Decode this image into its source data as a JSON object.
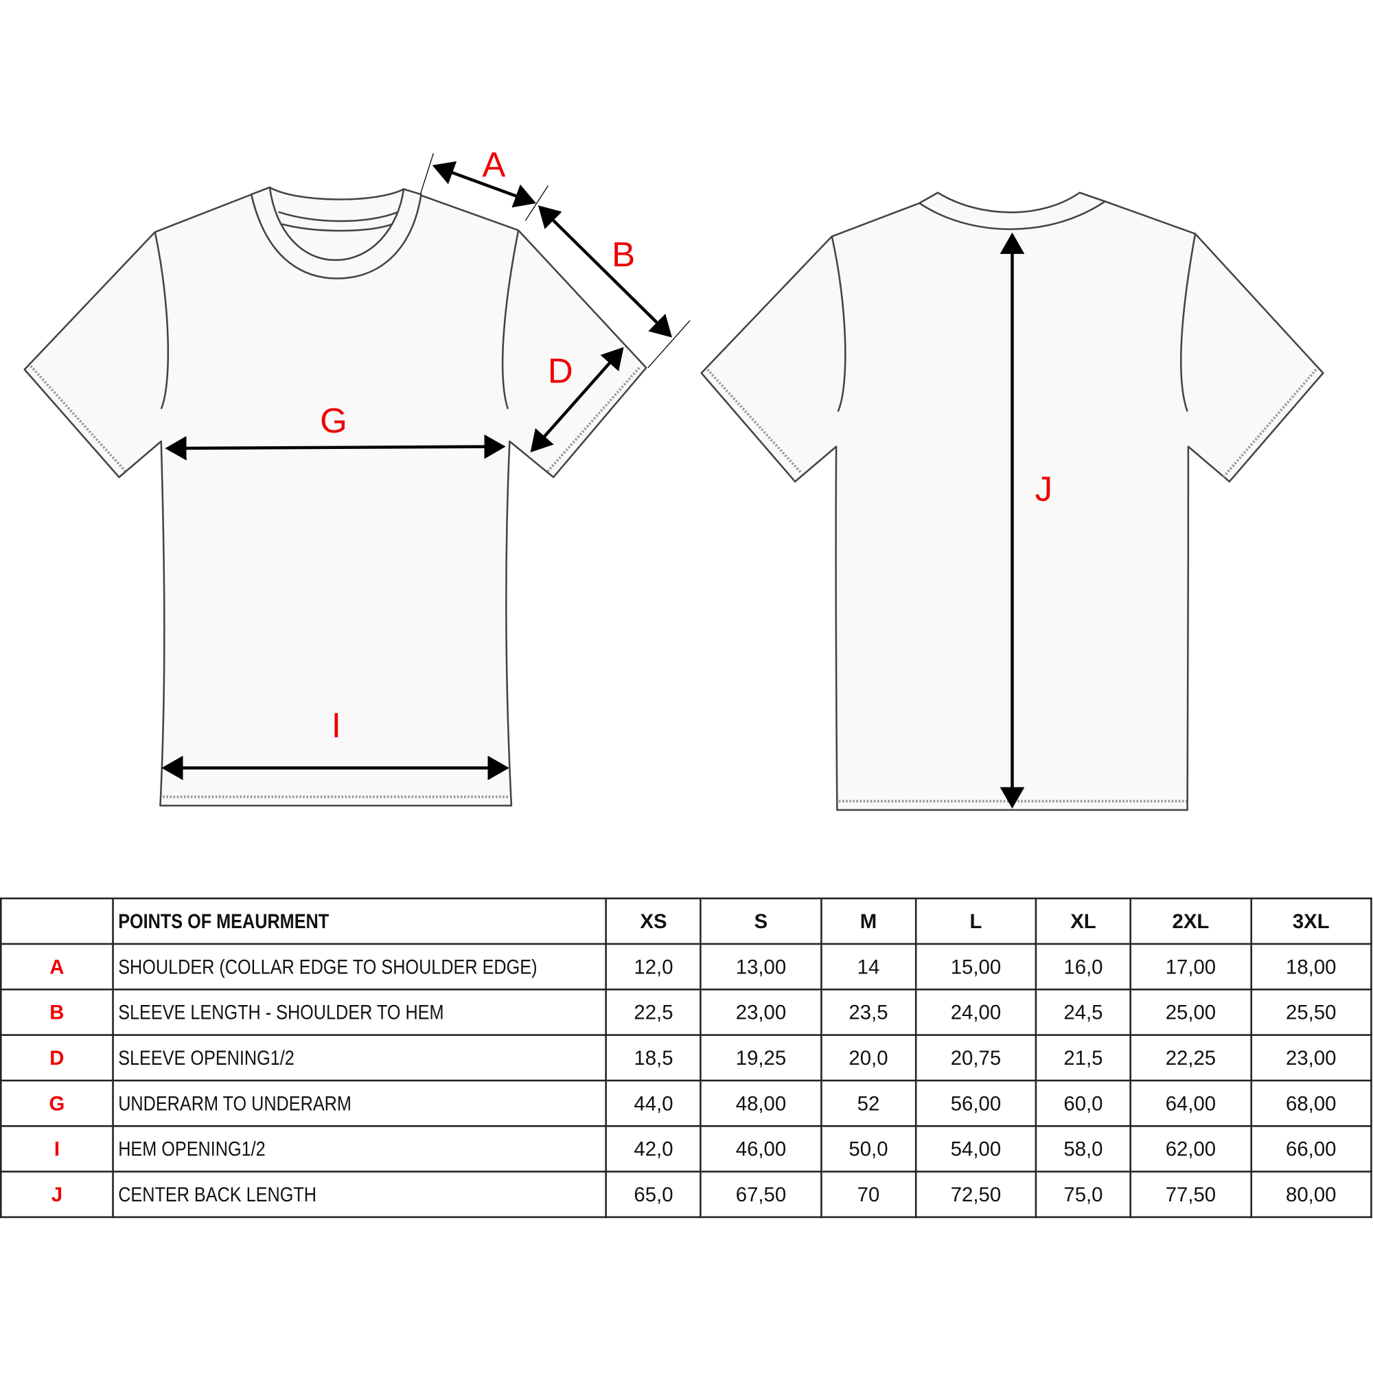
{
  "diagram": {
    "front_labels": {
      "A": "A",
      "B": "B",
      "D": "D",
      "G": "G",
      "I": "I"
    },
    "back_labels": {
      "J": "J"
    },
    "label_color": "#ee0000"
  },
  "table": {
    "header": {
      "code": "",
      "title": "POINTS OF MEAURMENT",
      "sizes": [
        "XS",
        "S",
        "M",
        "L",
        "XL",
        "2XL",
        "3XL"
      ]
    },
    "rows": [
      {
        "code": "A",
        "name": "SHOULDER (COLLAR EDGE TO SHOULDER EDGE)",
        "values": [
          "12,0",
          "13,00",
          "14",
          "15,00",
          "16,0",
          "17,00",
          "18,00"
        ]
      },
      {
        "code": "B",
        "name": "SLEEVE LENGTH - SHOULDER TO HEM",
        "values": [
          "22,5",
          "23,00",
          "23,5",
          "24,00",
          "24,5",
          "25,00",
          "25,50"
        ]
      },
      {
        "code": "D",
        "name": "SLEEVE OPENING1/2",
        "values": [
          "18,5",
          "19,25",
          "20,0",
          "20,75",
          "21,5",
          "22,25",
          "23,00"
        ]
      },
      {
        "code": "G",
        "name": "UNDERARM TO UNDERARM",
        "values": [
          "44,0",
          "48,00",
          "52",
          "56,00",
          "60,0",
          "64,00",
          "68,00"
        ]
      },
      {
        "code": "I",
        "name": "HEM OPENING1/2",
        "values": [
          "42,0",
          "46,00",
          "50,0",
          "54,00",
          "58,0",
          "62,00",
          "66,00"
        ]
      },
      {
        "code": "J",
        "name": "CENTER BACK LENGTH",
        "values": [
          "65,0",
          "67,50",
          "70",
          "72,50",
          "75,0",
          "77,50",
          "80,00"
        ]
      }
    ]
  }
}
